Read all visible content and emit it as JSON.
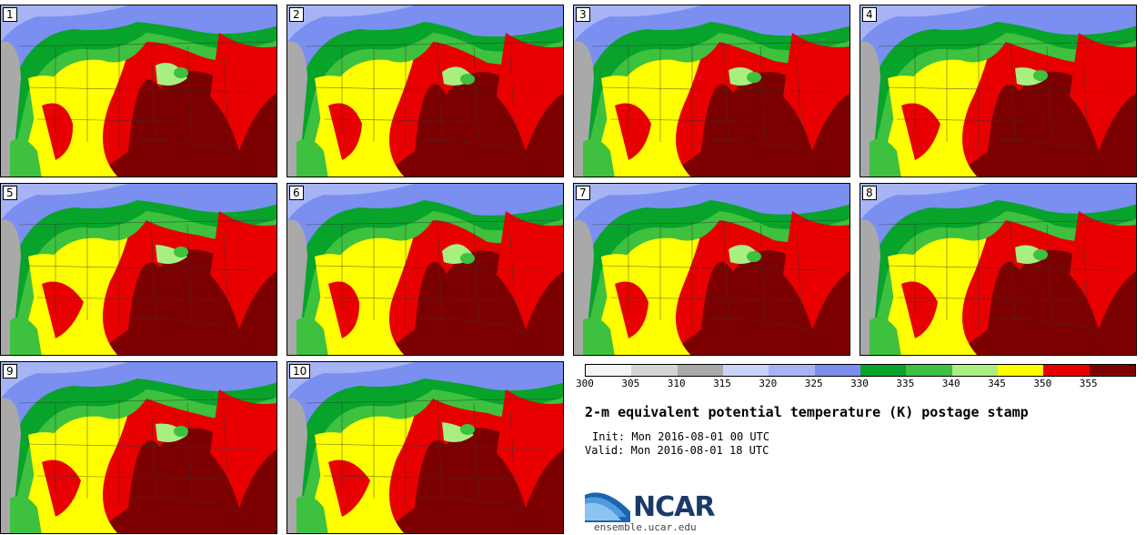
{
  "stamps": [
    {
      "label": "1",
      "variant": 0
    },
    {
      "label": "2",
      "variant": 1
    },
    {
      "label": "3",
      "variant": 2
    },
    {
      "label": "4",
      "variant": 3
    },
    {
      "label": "5",
      "variant": 4
    },
    {
      "label": "6",
      "variant": 5
    },
    {
      "label": "7",
      "variant": 6
    },
    {
      "label": "8",
      "variant": 7
    },
    {
      "label": "9",
      "variant": 8
    },
    {
      "label": "10",
      "variant": 9
    }
  ],
  "colorbar": {
    "colors": [
      "#f4f4f4",
      "#d4d4d4",
      "#a9a9a9",
      "#c9d4fb",
      "#a6b4f6",
      "#7b8ff0",
      "#07a32b",
      "#3ec13e",
      "#a8ef82",
      "#ffff00",
      "#e80000",
      "#7d0000"
    ],
    "tick_labels": [
      "300",
      "305",
      "310",
      "315",
      "320",
      "325",
      "330",
      "335",
      "340",
      "345",
      "350",
      "355"
    ],
    "units": "K"
  },
  "title": "2-m equivalent potential temperature (K) postage stamp",
  "init_label": "Init:",
  "init_value": "Mon 2016-08-01 00 UTC",
  "valid_label": "Valid:",
  "valid_value": "Mon 2016-08-01 18 UTC",
  "logo_text": "NCAR",
  "site": "ensemble.ucar.edu"
}
